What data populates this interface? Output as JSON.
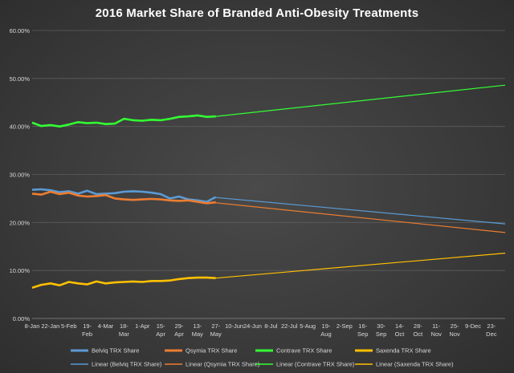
{
  "chart_data": {
    "type": "line",
    "title": "2016 Market Share of  Branded Anti-Obesity Treatments",
    "ylim": [
      0,
      60
    ],
    "y_ticks": [
      "0.00%",
      "10.00%",
      "20.00%",
      "30.00%",
      "40.00%",
      "50.00%",
      "60.00%"
    ],
    "x_tick_labels": [
      [
        "8-Jan"
      ],
      [
        "22-Jan"
      ],
      [
        "5-Feb"
      ],
      [
        "19-",
        "Feb"
      ],
      [
        "4-Mar"
      ],
      [
        "18-",
        "Mar"
      ],
      [
        "1-Apr"
      ],
      [
        "15-",
        "Apr"
      ],
      [
        "29-",
        "Apr"
      ],
      [
        "13-",
        "May"
      ],
      [
        "27-",
        "May"
      ],
      [
        "10-Jun"
      ],
      [
        "24-Jun"
      ],
      [
        "8-Jul"
      ],
      [
        "22-Jul"
      ],
      [
        "5-Aug"
      ],
      [
        "19-",
        "Aug"
      ],
      [
        "2-Sep"
      ],
      [
        "16-",
        "Sep"
      ],
      [
        "30-",
        "Sep"
      ],
      [
        "14-",
        "Oct"
      ],
      [
        "28-",
        "Oct"
      ],
      [
        "11-",
        "Nov"
      ],
      [
        "25-",
        "Nov"
      ],
      [
        "9-Dec"
      ],
      [
        "23-",
        "Dec"
      ]
    ],
    "x_range_weeks": [
      0,
      51.5
    ],
    "series": [
      {
        "name": "Belviq TRX Share",
        "color": "#5b9bd5",
        "x": [
          0,
          1,
          2,
          3,
          4,
          5,
          6,
          7,
          8,
          9,
          10,
          11,
          12,
          13,
          14,
          15,
          16,
          17,
          18,
          19,
          20
        ],
        "values": [
          26.8,
          26.9,
          26.7,
          26.3,
          26.5,
          26.0,
          26.6,
          25.9,
          26.0,
          26.1,
          26.4,
          26.5,
          26.4,
          26.2,
          25.9,
          25.0,
          25.4,
          24.8,
          24.6,
          24.3,
          25.3
        ]
      },
      {
        "name": "Qsymia TRX Share",
        "color": "#ed7d31",
        "x": [
          0,
          1,
          2,
          3,
          4,
          5,
          6,
          7,
          8,
          9,
          10,
          11,
          12,
          13,
          14,
          15,
          16,
          17,
          18,
          19,
          20
        ],
        "values": [
          26.0,
          25.8,
          26.4,
          25.9,
          26.2,
          25.6,
          25.4,
          25.5,
          25.7,
          25.0,
          24.8,
          24.7,
          24.8,
          24.9,
          24.8,
          24.6,
          24.5,
          24.6,
          24.3,
          24.0,
          24.2
        ]
      },
      {
        "name": "Contrave TRX Share",
        "color": "#33ff33",
        "x": [
          0,
          1,
          2,
          3,
          4,
          5,
          6,
          7,
          8,
          9,
          10,
          11,
          12,
          13,
          14,
          15,
          16,
          17,
          18,
          19,
          20
        ],
        "values": [
          40.8,
          40.1,
          40.3,
          40.0,
          40.4,
          40.9,
          40.7,
          40.8,
          40.5,
          40.6,
          41.6,
          41.3,
          41.2,
          41.4,
          41.3,
          41.6,
          42.0,
          42.1,
          42.3,
          42.0,
          42.1
        ]
      },
      {
        "name": "Saxenda TRX Share",
        "color": "#ffc000",
        "x": [
          0,
          1,
          2,
          3,
          4,
          5,
          6,
          7,
          8,
          9,
          10,
          11,
          12,
          13,
          14,
          15,
          16,
          17,
          18,
          19,
          20
        ],
        "values": [
          6.4,
          7.0,
          7.3,
          6.9,
          7.6,
          7.3,
          7.1,
          7.7,
          7.3,
          7.5,
          7.6,
          7.7,
          7.6,
          7.8,
          7.8,
          7.9,
          8.2,
          8.4,
          8.5,
          8.5,
          8.4
        ]
      }
    ],
    "trendlines": [
      {
        "name": "Linear (Belviq TRX Share)",
        "color": "#5b9bd5",
        "x": [
          20,
          51.5
        ],
        "values": [
          25.2,
          19.7
        ]
      },
      {
        "name": "Linear (Qsymia TRX Share)",
        "color": "#ed7d31",
        "x": [
          20,
          51.5
        ],
        "values": [
          24.1,
          17.9
        ]
      },
      {
        "name": "Linear (Contrave TRX Share)",
        "color": "#33ff33",
        "x": [
          20,
          51.5
        ],
        "values": [
          42.1,
          48.6
        ]
      },
      {
        "name": "Linear (Saxenda TRX Share)",
        "color": "#ffc000",
        "x": [
          20,
          51.5
        ],
        "values": [
          8.4,
          13.6
        ]
      }
    ],
    "legend_position": "bottom",
    "grid": true
  }
}
